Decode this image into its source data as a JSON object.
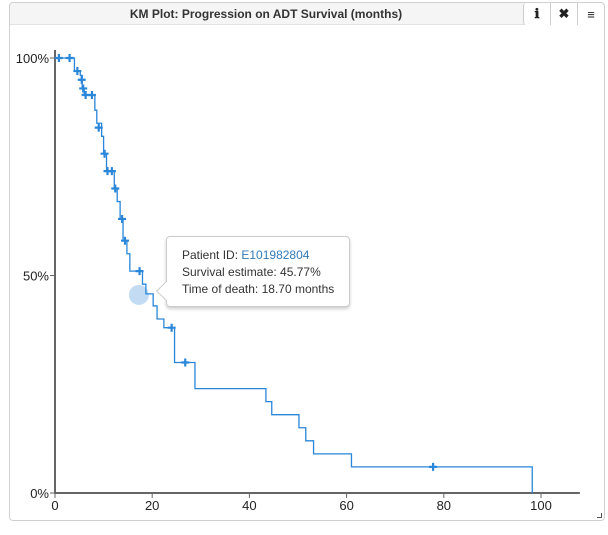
{
  "window": {
    "title": "KM Plot: Progression on ADT Survival (months)",
    "buttons": [
      {
        "name": "info",
        "icon": "info-icon",
        "glyph": "ℹ"
      },
      {
        "name": "close",
        "icon": "close-icon",
        "glyph": "✖"
      },
      {
        "name": "menu",
        "icon": "menu-icon",
        "glyph": "≡"
      }
    ]
  },
  "tooltip": {
    "patient_label": "Patient ID: ",
    "patient_id": "E101982804",
    "survival_label": "Survival estimate: ",
    "survival_value": "45.77%",
    "time_label": "Time of death: ",
    "time_value": "18.70 months"
  },
  "colors": {
    "line": "#2a86d9",
    "censor": "#2a86d9",
    "axis": "#666666",
    "highlight": "#b8d6f2",
    "link": "#337ab7"
  },
  "chart_data": {
    "type": "line",
    "subtype": "kaplan-meier-step",
    "title": "KM Plot: Progression on ADT Survival (months)",
    "xlabel": "",
    "ylabel": "",
    "xlim": [
      0,
      108
    ],
    "ylim": [
      0,
      100
    ],
    "x_ticks": [
      0,
      20,
      40,
      60,
      80,
      100
    ],
    "y_ticks": [
      {
        "value": 0,
        "label": "0%"
      },
      {
        "value": 50,
        "label": "50%"
      },
      {
        "value": 100,
        "label": "100%"
      }
    ],
    "grid": false,
    "legend": null,
    "series": [
      {
        "name": "Progression on ADT",
        "steps": [
          {
            "x": 0,
            "y": 100
          },
          {
            "x": 3.5,
            "y": 100
          },
          {
            "x": 4.0,
            "y": 97
          },
          {
            "x": 5.2,
            "y": 96
          },
          {
            "x": 5.6,
            "y": 93
          },
          {
            "x": 6.0,
            "y": 91.5
          },
          {
            "x": 7.8,
            "y": 91.5
          },
          {
            "x": 8.2,
            "y": 88
          },
          {
            "x": 8.6,
            "y": 85
          },
          {
            "x": 9.6,
            "y": 82
          },
          {
            "x": 10.0,
            "y": 78
          },
          {
            "x": 10.6,
            "y": 74
          },
          {
            "x": 11.8,
            "y": 74
          },
          {
            "x": 12.2,
            "y": 70
          },
          {
            "x": 12.8,
            "y": 67
          },
          {
            "x": 13.4,
            "y": 63
          },
          {
            "x": 14.0,
            "y": 58
          },
          {
            "x": 14.8,
            "y": 55
          },
          {
            "x": 15.4,
            "y": 51
          },
          {
            "x": 17.8,
            "y": 51
          },
          {
            "x": 18.0,
            "y": 48
          },
          {
            "x": 18.7,
            "y": 45.77
          },
          {
            "x": 20.2,
            "y": 43
          },
          {
            "x": 21.0,
            "y": 40
          },
          {
            "x": 22.4,
            "y": 38
          },
          {
            "x": 24.4,
            "y": 38
          },
          {
            "x": 24.6,
            "y": 30
          },
          {
            "x": 28.2,
            "y": 30
          },
          {
            "x": 28.8,
            "y": 24
          },
          {
            "x": 43.0,
            "y": 24
          },
          {
            "x": 43.4,
            "y": 21
          },
          {
            "x": 44.6,
            "y": 18
          },
          {
            "x": 49.8,
            "y": 18
          },
          {
            "x": 50.2,
            "y": 15
          },
          {
            "x": 51.6,
            "y": 12
          },
          {
            "x": 53.2,
            "y": 9
          },
          {
            "x": 60.8,
            "y": 9
          },
          {
            "x": 61.0,
            "y": 6
          },
          {
            "x": 98.2,
            "y": 6
          },
          {
            "x": 98.2,
            "y": 0
          }
        ],
        "censored": [
          {
            "x": 0.8,
            "y": 100
          },
          {
            "x": 3.0,
            "y": 100
          },
          {
            "x": 4.6,
            "y": 97
          },
          {
            "x": 5.5,
            "y": 95
          },
          {
            "x": 5.8,
            "y": 93
          },
          {
            "x": 6.3,
            "y": 91.5
          },
          {
            "x": 7.6,
            "y": 91.5
          },
          {
            "x": 9.0,
            "y": 84
          },
          {
            "x": 10.2,
            "y": 78
          },
          {
            "x": 10.8,
            "y": 74
          },
          {
            "x": 11.7,
            "y": 74
          },
          {
            "x": 12.4,
            "y": 70
          },
          {
            "x": 13.8,
            "y": 63
          },
          {
            "x": 14.4,
            "y": 58
          },
          {
            "x": 17.4,
            "y": 51
          },
          {
            "x": 24.0,
            "y": 38
          },
          {
            "x": 26.8,
            "y": 30
          },
          {
            "x": 77.8,
            "y": 6
          }
        ],
        "highlighted_point": {
          "x": 18.7,
          "y": 45.77,
          "patient_id": "E101982804"
        }
      }
    ]
  }
}
